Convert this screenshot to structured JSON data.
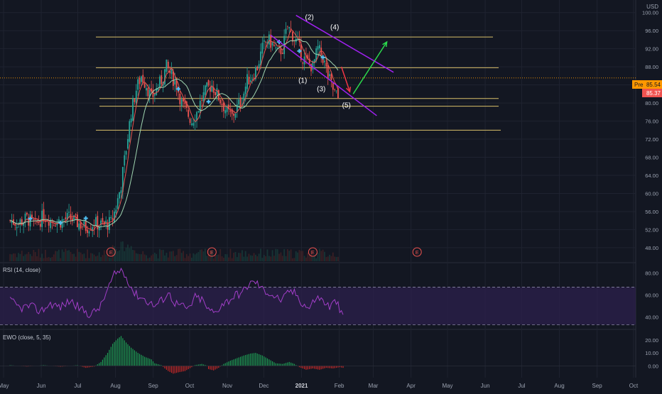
{
  "colors": {
    "background": "#131722",
    "grid": "#1f2330",
    "axis_text": "#9ba2b0",
    "candle_up": "#26a69a",
    "candle_down": "#ef5350",
    "ma_fast": "#e8534f",
    "ma_slow": "#9fd4b0",
    "hline": "#d9bf6a",
    "channel": "#a020f0",
    "wave_label": "#ffffff",
    "arrow_up": "#2bd94c",
    "arrow_down": "#f23645",
    "rsi_line": "#a23ec8",
    "rsi_band": "#2a1f4a",
    "ewo_up": "#1f9d55",
    "ewo_down": "#c62828",
    "price_orange": "#ff9800",
    "price_red": "#ef5350",
    "earnings": "#ef5350"
  },
  "header": {
    "currency": "USD"
  },
  "price_tags": {
    "pre_label": "Pre",
    "pre_value": "85.54",
    "last_value": "85.37"
  },
  "indicators": {
    "rsi_title": "RSI (14, close)",
    "ewo_title": "EWO (close, 5, 35)"
  },
  "earnings_marker": "E",
  "chart_data": [
    {
      "type": "candlestick",
      "title": "",
      "currency": "USD",
      "x_ticks": [
        "May",
        "Jun",
        "Jul",
        "Aug",
        "Sep",
        "Oct",
        "Nov",
        "Dec",
        "2021",
        "Feb",
        "Mar",
        "Apr",
        "May",
        "Jun",
        "Jul",
        "Aug",
        "Sep",
        "Oct"
      ],
      "y_ticks": [
        48.0,
        52.0,
        56.0,
        60.0,
        64.0,
        68.0,
        72.0,
        76.0,
        80.0,
        84.0,
        88.0,
        92.0,
        96.0,
        100.0
      ],
      "ylim": [
        45,
        102
      ],
      "price_series": [
        [
          0,
          54
        ],
        [
          5,
          53.5
        ],
        [
          10,
          54.5
        ],
        [
          15,
          53
        ],
        [
          20,
          55
        ],
        [
          25,
          54
        ],
        [
          30,
          53.8
        ],
        [
          35,
          54.6
        ],
        [
          40,
          53.5
        ],
        [
          45,
          52.5
        ],
        [
          50,
          53.4
        ],
        [
          55,
          53
        ],
        [
          60,
          53.5
        ],
        [
          63,
          57
        ],
        [
          66,
          62
        ],
        [
          69,
          70
        ],
        [
          72,
          78
        ],
        [
          75,
          83
        ],
        [
          78,
          86
        ],
        [
          81,
          84
        ],
        [
          84,
          81
        ],
        [
          87,
          83
        ],
        [
          90,
          85
        ],
        [
          93,
          88
        ],
        [
          96,
          86
        ],
        [
          99,
          84
        ],
        [
          102,
          80
        ],
        [
          105,
          78
        ],
        [
          108,
          76
        ],
        [
          111,
          78
        ],
        [
          114,
          81
        ],
        [
          117,
          83
        ],
        [
          120,
          84
        ],
        [
          123,
          82
        ],
        [
          126,
          80
        ],
        [
          129,
          78
        ],
        [
          132,
          77
        ],
        [
          135,
          79
        ],
        [
          138,
          81
        ],
        [
          141,
          85
        ],
        [
          144,
          86
        ],
        [
          147,
          88
        ],
        [
          150,
          92
        ],
        [
          153,
          94
        ],
        [
          156,
          93
        ],
        [
          159,
          91
        ],
        [
          162,
          92
        ],
        [
          165,
          97
        ],
        [
          168,
          95
        ],
        [
          171,
          93
        ],
        [
          174,
          90
        ],
        [
          177,
          89
        ],
        [
          180,
          88
        ],
        [
          183,
          92
        ],
        [
          186,
          90
        ],
        [
          189,
          86
        ],
        [
          192,
          83
        ],
        [
          195,
          81
        ]
      ],
      "earnings_days": [
        60,
        120,
        180,
        242
      ],
      "horizontal_levels": [
        94.6,
        87.8,
        81.0,
        79.3,
        74.0
      ],
      "channel_upper": [
        [
          170,
          99.4
        ],
        [
          228,
          86.8
        ]
      ],
      "channel_lower": [
        [
          155,
          95.0
        ],
        [
          218,
          77.2
        ]
      ],
      "wave_labels": [
        {
          "text": "(2)",
          "day": 178,
          "price": 98.5
        },
        {
          "text": "(4)",
          "day": 193,
          "price": 96.3
        },
        {
          "text": "(1)",
          "day": 174,
          "price": 84.5
        },
        {
          "text": "(3)",
          "day": 185,
          "price": 82.6
        },
        {
          "text": "(5)",
          "day": 200,
          "price": 79.0
        }
      ],
      "projection_down": [
        [
          197,
          88
        ],
        [
          202,
          82.5
        ]
      ],
      "projection_up": [
        [
          204,
          82
        ],
        [
          224,
          93.5
        ]
      ]
    },
    {
      "type": "line",
      "name": "RSI (14, close)",
      "ylim": [
        30,
        88
      ],
      "y_ticks": [
        40.0,
        60.0,
        80.0
      ],
      "bands": [
        33,
        67
      ],
      "values": [
        [
          0,
          55
        ],
        [
          6,
          48
        ],
        [
          12,
          50
        ],
        [
          18,
          45
        ],
        [
          24,
          52
        ],
        [
          30,
          49
        ],
        [
          36,
          55
        ],
        [
          42,
          47
        ],
        [
          48,
          42
        ],
        [
          54,
          50
        ],
        [
          58,
          65
        ],
        [
          62,
          78
        ],
        [
          66,
          83
        ],
        [
          70,
          74
        ],
        [
          74,
          61
        ],
        [
          78,
          58
        ],
        [
          82,
          54
        ],
        [
          86,
          50
        ],
        [
          90,
          55
        ],
        [
          94,
          62
        ],
        [
          98,
          53
        ],
        [
          102,
          50
        ],
        [
          106,
          47
        ],
        [
          110,
          58
        ],
        [
          114,
          56
        ],
        [
          118,
          46
        ],
        [
          122,
          44
        ],
        [
          126,
          52
        ],
        [
          130,
          55
        ],
        [
          134,
          60
        ],
        [
          138,
          62
        ],
        [
          142,
          70
        ],
        [
          146,
          72
        ],
        [
          150,
          65
        ],
        [
          154,
          62
        ],
        [
          158,
          58
        ],
        [
          162,
          55
        ],
        [
          166,
          64
        ],
        [
          170,
          61
        ],
        [
          174,
          52
        ],
        [
          178,
          48
        ],
        [
          182,
          58
        ],
        [
          186,
          55
        ],
        [
          190,
          49
        ],
        [
          194,
          55
        ],
        [
          196,
          45
        ],
        [
          198,
          40
        ]
      ]
    },
    {
      "type": "bar",
      "name": "EWO (close, 5, 35)",
      "ylim": [
        -8,
        27
      ],
      "y_ticks": [
        0.0,
        10.0,
        20.0
      ],
      "values": [
        [
          0,
          0.5
        ],
        [
          10,
          -0.5
        ],
        [
          20,
          0.5
        ],
        [
          30,
          -0.6
        ],
        [
          40,
          0.5
        ],
        [
          45,
          -1.5
        ],
        [
          50,
          -0.5
        ],
        [
          54,
          3
        ],
        [
          58,
          10
        ],
        [
          61,
          17
        ],
        [
          64,
          21
        ],
        [
          66,
          23
        ],
        [
          69,
          18
        ],
        [
          72,
          14
        ],
        [
          76,
          10
        ],
        [
          80,
          7
        ],
        [
          84,
          5
        ],
        [
          86,
          2
        ],
        [
          90,
          0.5
        ],
        [
          92,
          -2
        ],
        [
          94,
          -4
        ],
        [
          97,
          -6
        ],
        [
          100,
          -5
        ],
        [
          104,
          -4
        ],
        [
          108,
          -1
        ],
        [
          110,
          0.6
        ],
        [
          114,
          1.5
        ],
        [
          117,
          0.3
        ],
        [
          118,
          -2.5
        ],
        [
          121,
          -3.5
        ],
        [
          124,
          -1.5
        ],
        [
          127,
          1.5
        ],
        [
          131,
          4
        ],
        [
          135,
          6
        ],
        [
          139,
          8
        ],
        [
          143,
          9.5
        ],
        [
          146,
          10
        ],
        [
          150,
          8
        ],
        [
          154,
          5
        ],
        [
          158,
          2
        ],
        [
          162,
          1.5
        ],
        [
          166,
          3
        ],
        [
          169,
          1.5
        ],
        [
          172,
          -1
        ],
        [
          176,
          -3
        ],
        [
          180,
          -2
        ],
        [
          184,
          -3
        ],
        [
          188,
          -1.5
        ],
        [
          192,
          -2
        ],
        [
          196,
          -1
        ],
        [
          198,
          -1.5
        ]
      ]
    }
  ]
}
